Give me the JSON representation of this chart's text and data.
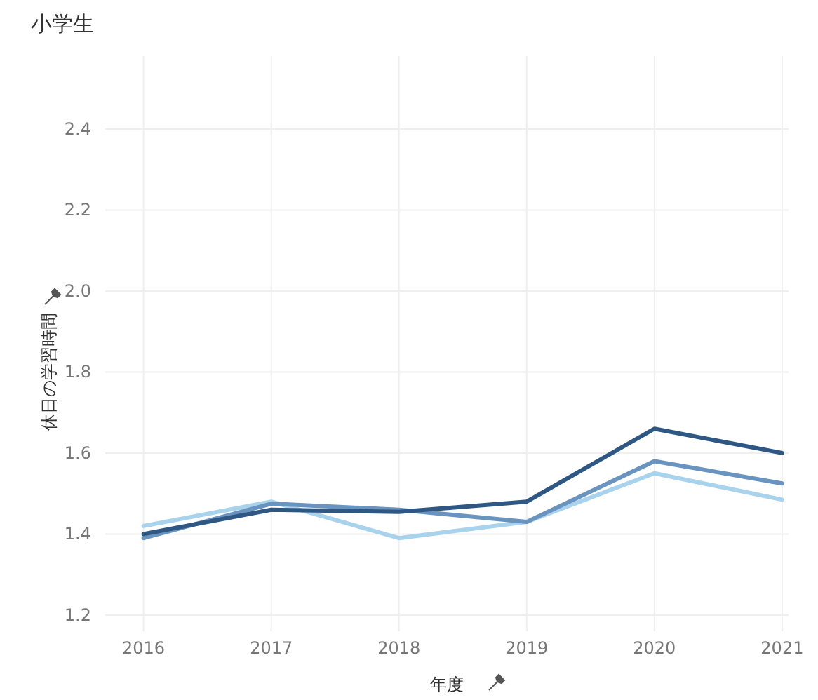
{
  "chart_data": {
    "type": "line",
    "title": "小学生",
    "xlabel": "年度",
    "ylabel": "休日の学習時間",
    "x": [
      2016,
      2017,
      2018,
      2019,
      2020,
      2021
    ],
    "series": [
      {
        "color": "#a9d3ec",
        "values": [
          1.42,
          1.48,
          1.39,
          1.43,
          1.55,
          1.485
        ]
      },
      {
        "color": "#6a94c0",
        "values": [
          1.39,
          1.475,
          1.46,
          1.43,
          1.58,
          1.525
        ]
      },
      {
        "color": "#2e5783",
        "values": [
          1.4,
          1.46,
          1.455,
          1.48,
          1.66,
          1.6
        ]
      }
    ],
    "xlim": [
      2015.7,
      2021.05
    ],
    "ylim": [
      1.16,
      2.58
    ],
    "xticks": [
      2016,
      2017,
      2018,
      2019,
      2020,
      2021
    ],
    "yticks": [
      {
        "value": 1.2,
        "label": "1.2"
      },
      {
        "value": 1.4,
        "label": "1.4"
      },
      {
        "value": 1.6,
        "label": "1.6"
      },
      {
        "value": 1.8,
        "label": "1.8"
      },
      {
        "value": 2.0,
        "label": "2.0"
      },
      {
        "value": 2.2,
        "label": "2.2"
      },
      {
        "value": 2.4,
        "label": "2.4"
      }
    ],
    "grid": true,
    "marker": "none",
    "line_style": "solid"
  }
}
